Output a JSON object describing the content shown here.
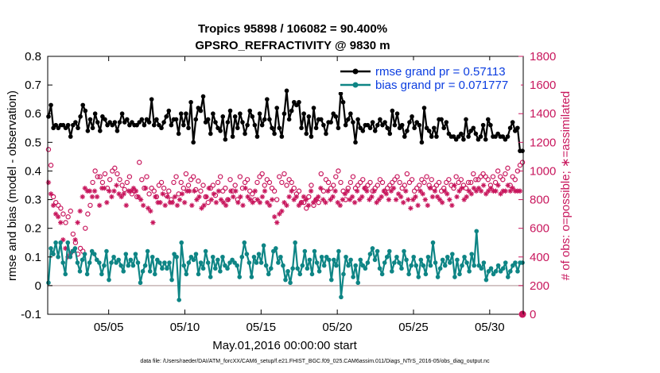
{
  "chart_data": {
    "type": "line",
    "title_line1": "Tropics 95898 / 106082 = 90.400%",
    "title_line2": "GPSRO_REFRACTIVITY @ 9830 m",
    "xlabel": "May.01,2016 00:00:00 start",
    "ylabel_left": "rmse and bias (model - observation)",
    "ylabel_right": "# of obs: o=possible; ∗=assimilated",
    "footnote": "data file: /Users/raeder/DAI/ATM_forcXX/CAM6_setup/f.e21.FHIST_BGC.f09_025.CAM6assim.011/Diags_NTrS_2016-05/obs_diag_output.nc",
    "xlim": [
      1,
      32.2
    ],
    "ylim_left": [
      -0.1,
      0.8
    ],
    "ylim_right": [
      0,
      1800
    ],
    "x_ticks": [
      5,
      10,
      15,
      20,
      25,
      30
    ],
    "x_tick_labels": [
      "05/05",
      "05/10",
      "05/15",
      "05/20",
      "05/25",
      "05/30"
    ],
    "y_left_ticks": [
      "-0.1",
      "0",
      "0.1",
      "0.2",
      "0.3",
      "0.4",
      "0.5",
      "0.6",
      "0.7",
      "0.8"
    ],
    "y_right_ticks": [
      "0",
      "200",
      "400",
      "600",
      "800",
      "1000",
      "1200",
      "1400",
      "1600",
      "1800"
    ],
    "legend": [
      {
        "label": "rmse grand pr = 0.57113",
        "color": "#000000"
      },
      {
        "label": "bias grand pr = 0.071777",
        "color": "#0e8585"
      }
    ],
    "colors": {
      "rmse": "#000000",
      "bias": "#0e8585",
      "obs": "#c8175d",
      "zero_line": "#c7b5b5"
    },
    "rmse": [
      0.59,
      0.63,
      0.55,
      0.56,
      0.55,
      0.56,
      0.56,
      0.55,
      0.56,
      0.52,
      0.56,
      0.57,
      0.55,
      0.59,
      0.63,
      0.61,
      0.54,
      0.58,
      0.55,
      0.6,
      0.57,
      0.54,
      0.59,
      0.58,
      0.56,
      0.57,
      0.56,
      0.57,
      0.54,
      0.57,
      0.6,
      0.57,
      0.58,
      0.56,
      0.57,
      0.56,
      0.56,
      0.57,
      0.58,
      0.56,
      0.58,
      0.57,
      0.65,
      0.56,
      0.58,
      0.56,
      0.55,
      0.57,
      0.59,
      0.61,
      0.56,
      0.58,
      0.58,
      0.53,
      0.6,
      0.56,
      0.6,
      0.55,
      0.64,
      0.5,
      0.58,
      0.62,
      0.61,
      0.66,
      0.57,
      0.58,
      0.53,
      0.6,
      0.57,
      0.55,
      0.54,
      0.59,
      0.51,
      0.57,
      0.61,
      0.52,
      0.59,
      0.55,
      0.6,
      0.57,
      0.53,
      0.56,
      0.61,
      0.59,
      0.56,
      0.52,
      0.6,
      0.56,
      0.58,
      0.65,
      0.58,
      0.55,
      0.53,
      0.62,
      0.55,
      0.52,
      0.6,
      0.68,
      0.58,
      0.61,
      0.64,
      0.63,
      0.64,
      0.55,
      0.6,
      0.53,
      0.59,
      0.52,
      0.62,
      0.55,
      0.58,
      0.58,
      0.56,
      0.53,
      0.57,
      0.57,
      0.6,
      0.59,
      0.55,
      0.67,
      0.64,
      0.56,
      0.58,
      0.6,
      0.57,
      0.5,
      0.58,
      0.55,
      0.54,
      0.56,
      0.56,
      0.55,
      0.57,
      0.54,
      0.56,
      0.58,
      0.56,
      0.57,
      0.55,
      0.53,
      0.61,
      0.56,
      0.6,
      0.55,
      0.56,
      0.52,
      0.54,
      0.57,
      0.59,
      0.55,
      0.57,
      0.56,
      0.5,
      0.62,
      0.55,
      0.54,
      0.52,
      0.55,
      0.52,
      0.58,
      0.58,
      0.55,
      0.57,
      0.53,
      0.52,
      0.52,
      0.51,
      0.52,
      0.53,
      0.51,
      0.58,
      0.52,
      0.54,
      0.55,
      0.53,
      0.51,
      0.52,
      0.56,
      0.51,
      0.58,
      0.56,
      0.52,
      0.52,
      0.53,
      0.52,
      0.52,
      0.51,
      0.52,
      0.55,
      0.57,
      0.54,
      0.55,
      0.47,
      0.47
    ],
    "bias": [
      0.01,
      0.13,
      0.11,
      0.15,
      0.1,
      0.15,
      0.08,
      0.04,
      0.15,
      0.1,
      0.12,
      0.13,
      0.08,
      0.05,
      0.09,
      0.11,
      0.04,
      0.08,
      0.12,
      0.11,
      0.09,
      0.08,
      0.04,
      0.07,
      0.12,
      0.02,
      0.08,
      0.1,
      0.08,
      0.09,
      0.07,
      0.05,
      0.11,
      0.07,
      0.09,
      0.07,
      0.11,
      0.08,
      0.01,
      0.05,
      0.07,
      0.12,
      0.05,
      0.1,
      0.04,
      0.09,
      0.08,
      0.06,
      0.08,
      0.06,
      0.08,
      0.02,
      0.11,
      0.1,
      -0.05,
      0.15,
      0.07,
      0.04,
      0.08,
      0.1,
      0.09,
      0.11,
      0.04,
      0.08,
      0.06,
      0.12,
      0.08,
      0.03,
      0.1,
      0.06,
      0.09,
      0.05,
      0.1,
      0.07,
      0.06,
      0.08,
      0.09,
      0.08,
      0.07,
      0.03,
      0.1,
      0.15,
      0.11,
      0.08,
      0.03,
      0.1,
      0.08,
      0.11,
      0.08,
      0.14,
      0.07,
      0.04,
      0.06,
      0.12,
      0.13,
      0.08,
      0.1,
      0.07,
      0.02,
      0.05,
      0.01,
      0.06,
      0.15,
      0.06,
      0.04,
      0.07,
      0.12,
      0.06,
      0.09,
      0.04,
      0.12,
      0.08,
      0.05,
      0.1,
      0.07,
      0.1,
      0.09,
      0.02,
      0.09,
      0.07,
      0.12,
      -0.04,
      0.04,
      0.1,
      0.07,
      0.09,
      0.03,
      0.07,
      0.01,
      0.09,
      0.07,
      0.06,
      0.08,
      0.11,
      0.13,
      0.09,
      0.12,
      0.06,
      0.04,
      0.08,
      0.1,
      0.12,
      0.05,
      0.08,
      0.1,
      0.08,
      0.06,
      0.12,
      0.09,
      0.04,
      0.07,
      0.1,
      0.07,
      0.03,
      0.09,
      0.07,
      0.04,
      0.1,
      0.07,
      0.15,
      0.08,
      0.03,
      0.06,
      0.09,
      0.07,
      0.1,
      0.08,
      0.11,
      0.03,
      0.09,
      0.04,
      0.07,
      0.1,
      0.08,
      0.05,
      0.11,
      0.07,
      0.19,
      0.07,
      0.06,
      0.08,
      0.02,
      0.05,
      0.06,
      0.04,
      0.05,
      0.07,
      0.05,
      0.06,
      0.08,
      0.03,
      0.05,
      0.07,
      0.08,
      0.05,
      0.08,
      0.08
    ],
    "obs_possible": [
      1150,
      1040,
      820,
      780,
      760,
      740,
      700,
      640,
      680,
      720,
      560,
      500,
      420,
      460,
      440,
      600,
      700,
      760,
      920,
      1000,
      960,
      960,
      920,
      980,
      880,
      940,
      1000,
      1020,
      980,
      940,
      900,
      870,
      920,
      960,
      840,
      860,
      820,
      1060,
      940,
      880,
      960,
      840,
      880,
      860,
      820,
      900,
      920,
      880,
      830,
      860,
      800,
      920,
      960,
      840,
      920,
      880,
      980,
      900,
      940,
      960,
      870,
      930,
      860,
      900,
      820,
      780,
      880,
      900,
      830,
      920,
      960,
      860,
      880,
      800,
      940,
      860,
      900,
      800,
      960,
      880,
      920,
      940,
      860,
      840,
      800,
      920,
      960,
      980,
      900,
      940,
      920,
      880,
      860,
      800,
      960,
      920,
      980,
      900,
      940,
      920,
      880,
      840,
      860,
      780,
      780,
      740,
      820,
      900,
      760,
      800,
      780,
      980,
      860,
      940,
      920,
      880,
      900,
      960,
      1000,
      920,
      860,
      800,
      880,
      920,
      960,
      880,
      900,
      920,
      940,
      880,
      900,
      920,
      860,
      880,
      900,
      940,
      920,
      860,
      880,
      900,
      920,
      940,
      960,
      920,
      880,
      900,
      980,
      920,
      940,
      860,
      880,
      900,
      940,
      920,
      960,
      900,
      940,
      880,
      900,
      920,
      860,
      880,
      920,
      940,
      900,
      880,
      960,
      920,
      940,
      900,
      880,
      920,
      920,
      980,
      940,
      940,
      960,
      980,
      960,
      940,
      900,
      960,
      920,
      1000,
      960,
      940,
      980,
      1020,
      900,
      960,
      940,
      1000,
      1040,
      1060
    ],
    "obs_assimilated": [
      920,
      840,
      760,
      700,
      680,
      640,
      520,
      460,
      400,
      420,
      440,
      520,
      640,
      720,
      820,
      880,
      860,
      860,
      820,
      860,
      820,
      760,
      880,
      880,
      780,
      860,
      820,
      860,
      900,
      840,
      820,
      840,
      760,
      860,
      860,
      880,
      860,
      820,
      800,
      760,
      880,
      740,
      720,
      640,
      820,
      780,
      780,
      840,
      760,
      820,
      780,
      780,
      820,
      760,
      800,
      840,
      780,
      860,
      860,
      760,
      860,
      800,
      820,
      740,
      760,
      820,
      880,
      800,
      840,
      780,
      860,
      800,
      780,
      760,
      800,
      860,
      820,
      860,
      780,
      820,
      760,
      880,
      820,
      800,
      780,
      860,
      800,
      780,
      820,
      860,
      780,
      760,
      800,
      680,
      640,
      700,
      720,
      780,
      760,
      820,
      860,
      800,
      820,
      760,
      780,
      820,
      800,
      760,
      860,
      780,
      800,
      820,
      880,
      800,
      780,
      860,
      800,
      820,
      860,
      780,
      760,
      800,
      840,
      860,
      800,
      820,
      780,
      860,
      800,
      820,
      880,
      860,
      800,
      820,
      860,
      780,
      800,
      820,
      860,
      840,
      800,
      860,
      880,
      800,
      840,
      820,
      780,
      860,
      800,
      740,
      800,
      820,
      760,
      860,
      840,
      800,
      760,
      880,
      820,
      860,
      820,
      800,
      780,
      860,
      840,
      800,
      760,
      900,
      820,
      860,
      880,
      800,
      820,
      860,
      840,
      880,
      860,
      880,
      860,
      900,
      840,
      860,
      880,
      860,
      860,
      900,
      840,
      860,
      860,
      900,
      860,
      880,
      860,
      860,
      860,
      0
    ]
  }
}
